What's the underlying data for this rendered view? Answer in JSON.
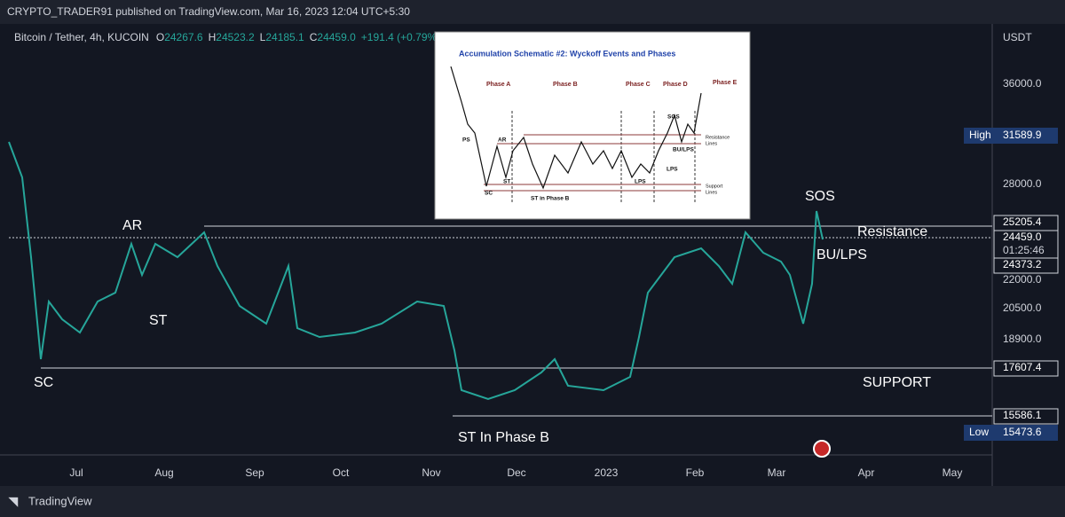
{
  "header": {
    "publisher": "CRYPTO_TRADER91 published on TradingView.com, Mar 16, 2023 12:04 UTC+5:30"
  },
  "legend": {
    "symbol": "Bitcoin / Tether, 4h, KUCOIN",
    "o_label": "O",
    "open": "24267.6",
    "h_label": "H",
    "high": "24523.2",
    "l_label": "L",
    "low": "24185.1",
    "c_label": "C",
    "close": "24459.0",
    "change": "+191.4 (+0.79%)"
  },
  "price_axis": {
    "currency": "USDT",
    "labels": [
      "36000.0",
      "28000.0",
      "22000.0",
      "20500.0",
      "18900.0"
    ],
    "tags": {
      "high_label": "High",
      "high": "31589.9",
      "resistance": "25205.4",
      "last": "24459.0",
      "countdown": "01:25:46",
      "level": "24373.2",
      "support": "17607.4",
      "st_b": "15586.1",
      "low_label": "Low",
      "low": "15473.6"
    }
  },
  "time_axis": {
    "labels": [
      "Jul",
      "Aug",
      "Sep",
      "Oct",
      "Nov",
      "Dec",
      "2023",
      "Feb",
      "Mar",
      "Apr",
      "May"
    ]
  },
  "annotations": {
    "ar": "AR",
    "sc": "SC",
    "st": "ST",
    "st_b": "ST In Phase B",
    "sos": "SOS",
    "resistance": "Resistance",
    "bu_lps": "BU/LPS",
    "support": "SUPPORT"
  },
  "inset": {
    "title": "Accumulation Schematic #2: Wyckoff Events and Phases",
    "phases": [
      "Phase A",
      "Phase B",
      "Phase C",
      "Phase D",
      "Phase E"
    ],
    "labels": {
      "ps": "PS",
      "ar": "AR",
      "sc": "SC",
      "st": "ST",
      "st_b": "ST in Phase B",
      "lps1": "LPS",
      "lps2": "LPS",
      "sos": "SOS",
      "bu_lps": "BU/LPS",
      "res1": "Resistance",
      "res2": "Lines",
      "sup1": "Support",
      "sup2": "Lines"
    }
  },
  "footer": {
    "brand": "TradingView"
  }
}
